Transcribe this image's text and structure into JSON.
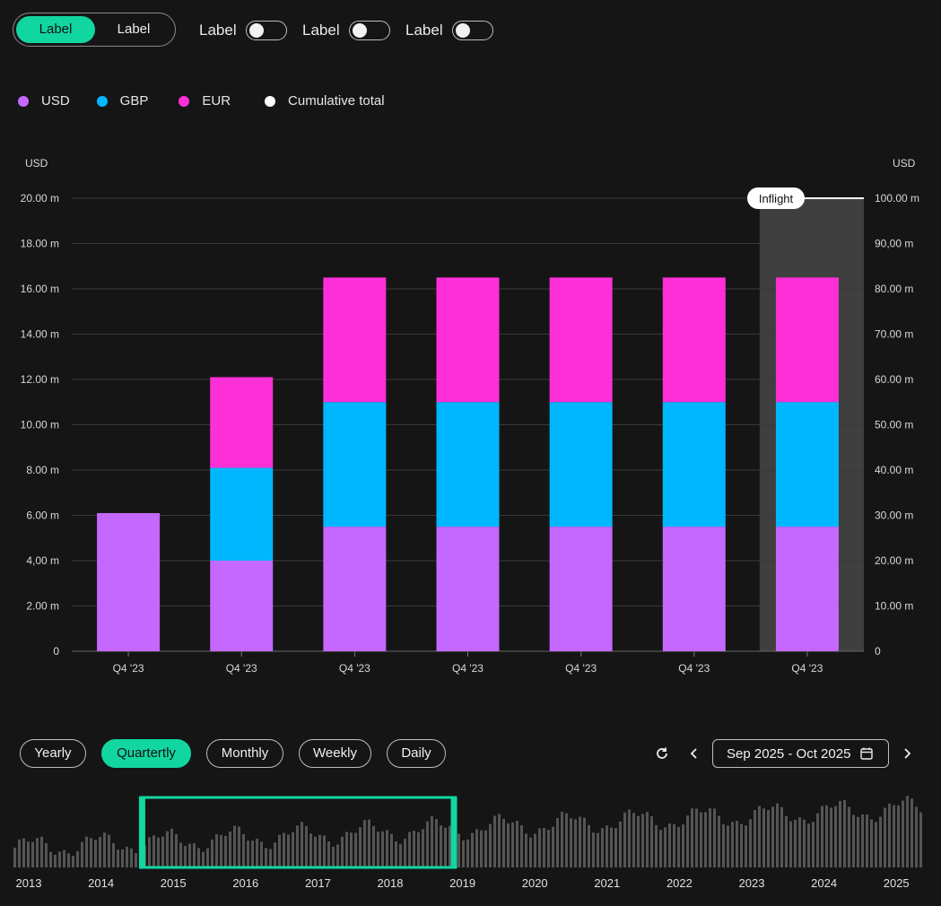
{
  "controls": {
    "segment": {
      "active": "Label",
      "inactive": "Label"
    },
    "toggles": [
      {
        "label": "Label"
      },
      {
        "label": "Label"
      },
      {
        "label": "Label"
      }
    ]
  },
  "legend": [
    {
      "label": "USD",
      "color": "#c468ff"
    },
    {
      "label": "GBP",
      "color": "#00b7ff"
    },
    {
      "label": "EUR",
      "color": "#ff2fd8"
    },
    {
      "label": "Cumulative total",
      "color": "#ffffff"
    }
  ],
  "chart_data": {
    "type": "bar",
    "stacked": true,
    "categories": [
      "Q4 '23",
      "Q4 '23",
      "Q4 '23",
      "Q4 '23",
      "Q4 '23",
      "Q4 '23",
      "Q4 '23"
    ],
    "series": [
      {
        "name": "USD",
        "color": "#c468ff",
        "values": [
          6.1,
          4.0,
          5.5,
          5.5,
          5.5,
          5.5,
          5.5
        ]
      },
      {
        "name": "GBP",
        "color": "#00b7ff",
        "values": [
          0,
          4.1,
          5.5,
          5.5,
          5.5,
          5.5,
          5.5
        ]
      },
      {
        "name": "EUR",
        "color": "#ff2fd8",
        "values": [
          0,
          4.0,
          5.5,
          5.5,
          5.5,
          5.5,
          5.5
        ]
      }
    ],
    "ylabel_left": "USD",
    "ylabel_right": "USD",
    "ylim": [
      0,
      20
    ],
    "ylim_right": [
      0,
      100
    ],
    "yticks_left": [
      "0",
      "2.00 m",
      "4,00 m",
      "6.00 m",
      "8.00 m",
      "10.00 m",
      "12.00 m",
      "14.00 m",
      "16.00 m",
      "18.00 m",
      "20.00 m"
    ],
    "yticks_right": [
      "0",
      "10.00 m",
      "20.00 m",
      "30.00 m",
      "40.00 m",
      "50.00 m",
      "60.00 m",
      "70.00 m",
      "80.00 m",
      "90,00 m",
      "100.00 m"
    ],
    "highlight": {
      "label": "Inflight",
      "category_index": 6
    },
    "grid": true
  },
  "period_buttons": [
    {
      "label": "Yearly",
      "active": false
    },
    {
      "label": "Quartertly",
      "active": true
    },
    {
      "label": "Monthly",
      "active": false
    },
    {
      "label": "Weekly",
      "active": false
    },
    {
      "label": "Daily",
      "active": false
    }
  ],
  "date_range": {
    "label": "Sep 2025 - Oct 2025"
  },
  "timeline": {
    "years": [
      "2013",
      "2014",
      "2015",
      "2016",
      "2017",
      "2018",
      "2019",
      "2020",
      "2021",
      "2022",
      "2023",
      "2024",
      "2025"
    ],
    "selection": {
      "start_year": 2014.55,
      "end_year": 2018.9
    }
  },
  "colors": {
    "accent": "#12d6a0",
    "background": "#151515"
  }
}
